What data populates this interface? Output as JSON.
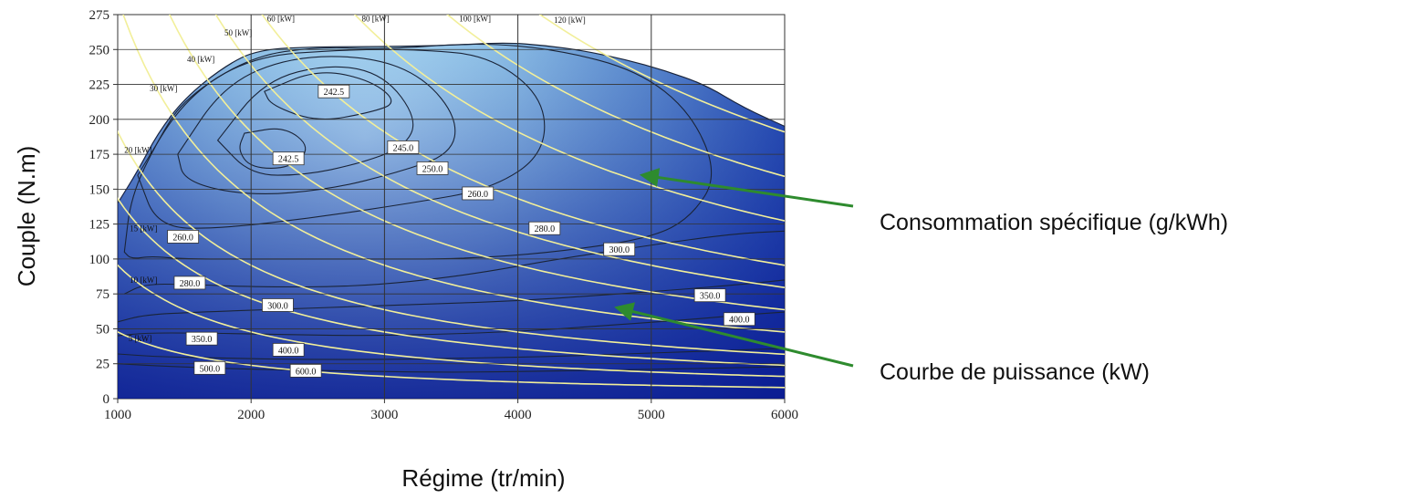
{
  "chart_data": {
    "type": "contour",
    "xlabel": "Régime (tr/min)",
    "ylabel": "Couple (N.m)",
    "xlim": [
      1000,
      6000
    ],
    "ylim": [
      0,
      275
    ],
    "x_ticks": [
      1000,
      2000,
      3000,
      4000,
      5000,
      6000
    ],
    "y_ticks": [
      0,
      25,
      50,
      75,
      100,
      125,
      150,
      175,
      200,
      225,
      250,
      275
    ],
    "grid": true,
    "max_torque_curve": {
      "x": [
        1000,
        1150,
        1300,
        1500,
        1800,
        2050,
        2500,
        3000,
        3500,
        3900,
        4200,
        4500,
        4800,
        5100,
        5400,
        5700,
        6000
      ],
      "y": [
        140,
        163,
        190,
        215,
        238,
        250,
        252,
        252,
        253,
        255,
        253,
        249,
        243,
        235,
        225,
        208,
        195
      ]
    },
    "power_curves": [
      {
        "label": "5 [kW]",
        "kw": 5
      },
      {
        "label": "10 [kW]",
        "kw": 10
      },
      {
        "label": "15 [kW]",
        "kw": 15
      },
      {
        "label": "20 [kW]",
        "kw": 20
      },
      {
        "label": "30 [kW]",
        "kw": 30
      },
      {
        "label": "40 [kW]",
        "kw": 40
      },
      {
        "label": "50 [kW]",
        "kw": 50
      },
      {
        "label": "60 [kW]",
        "kw": 60
      },
      {
        "label": "80 [kW]",
        "kw": 80
      },
      {
        "label": "100 [kW]",
        "kw": 100
      },
      {
        "label": "120 [kW]",
        "kw": 120
      }
    ],
    "power_labels": [
      {
        "text": "5 [kW]",
        "x": 1080,
        "y": 41
      },
      {
        "text": "10 [kW]",
        "x": 1090,
        "y": 83
      },
      {
        "text": "15 [kW]",
        "x": 1090,
        "y": 120
      },
      {
        "text": "20 [kW]",
        "x": 1050,
        "y": 176
      },
      {
        "text": "30 [kW]",
        "x": 1240,
        "y": 220
      },
      {
        "text": "40 [kW]",
        "x": 1520,
        "y": 241
      },
      {
        "text": "50 [kW]",
        "x": 1800,
        "y": 260
      },
      {
        "text": "60 [kW]",
        "x": 2120,
        "y": 270
      },
      {
        "text": "80 [kW]",
        "x": 2830,
        "y": 270
      },
      {
        "text": "100 [kW]",
        "x": 3560,
        "y": 270
      },
      {
        "text": "120 [kW]",
        "x": 4270,
        "y": 269
      }
    ],
    "bsfc_contours": [
      {
        "label": "242.5",
        "x": [
          2100,
          2500,
          2900,
          3100,
          2900,
          2500,
          2150,
          2100
        ],
        "y": [
          220,
          236,
          228,
          212,
          205,
          198,
          210,
          220
        ]
      },
      {
        "label": "242.5",
        "x": [
          1950,
          2250,
          2450,
          2300,
          2000,
          1900,
          1950
        ],
        "y": [
          190,
          195,
          180,
          165,
          165,
          178,
          190
        ]
      },
      {
        "label": "245.0",
        "x": [
          1750,
          2100,
          2600,
          3000,
          3250,
          3150,
          2800,
          2400,
          2000,
          1750
        ],
        "y": [
          185,
          228,
          240,
          232,
          200,
          180,
          168,
          160,
          160,
          185
        ]
      },
      {
        "label": "250.0",
        "x": [
          1450,
          1800,
          2300,
          2900,
          3300,
          3550,
          3500,
          3100,
          2600,
          2000,
          1500,
          1450
        ],
        "y": [
          175,
          225,
          245,
          245,
          230,
          200,
          175,
          162,
          150,
          145,
          155,
          175
        ]
      },
      {
        "label": "260.0",
        "x": [
          1150,
          1500,
          2000,
          2700,
          3300,
          3800,
          4200,
          4200,
          3800,
          3200,
          2500,
          1800,
          1300,
          1150
        ],
        "y": [
          160,
          215,
          245,
          250,
          250,
          245,
          215,
          175,
          150,
          140,
          130,
          122,
          122,
          160
        ]
      },
      {
        "label": "280.0",
        "x": [
          1050,
          1100,
          1300,
          1500,
          2000,
          2500,
          3000,
          3700,
          4300,
          4900,
          5300,
          5500,
          5300,
          5000,
          4300,
          3600,
          2800,
          2000,
          1500,
          1250,
          1100,
          1050
        ],
        "y": [
          105,
          145,
          185,
          215,
          245,
          252,
          250,
          255,
          250,
          235,
          205,
          160,
          130,
          115,
          105,
          100,
          100,
          100,
          100,
          102,
          100,
          105
        ]
      },
      {
        "label": "300.0",
        "x": [
          1050,
          1200,
          1500,
          2000,
          2800,
          3600,
          4300,
          5000,
          5600,
          6000
        ],
        "y": [
          75,
          82,
          82,
          80,
          80,
          88,
          100,
          110,
          118,
          120
        ]
      },
      {
        "label": "350.0",
        "x": [
          1000,
          1200,
          1600,
          2200,
          2800,
          3400,
          4000,
          4600,
          5200,
          5700,
          6000
        ],
        "y": [
          55,
          60,
          62,
          64,
          66,
          68,
          70,
          74,
          78,
          82,
          85
        ]
      },
      {
        "label": "400.0",
        "x": [
          1000,
          1200,
          1600,
          2200,
          2800,
          3400,
          4000,
          4600,
          5200,
          5700,
          6000
        ],
        "y": [
          45,
          47,
          47,
          46,
          45,
          46,
          48,
          52,
          56,
          60,
          62
        ]
      },
      {
        "label": "500.0",
        "x": [
          1000,
          1300,
          1800,
          2400,
          3000,
          3600,
          4200,
          4800,
          5400,
          6000
        ],
        "y": [
          32,
          30,
          29,
          28,
          28,
          29,
          30,
          32,
          34,
          36
        ]
      },
      {
        "label": "600.0",
        "x": [
          1000,
          1400,
          2000,
          2600,
          3200,
          3800,
          4400,
          5000,
          5600,
          6000
        ],
        "y": [
          25,
          23,
          21,
          20,
          19,
          19,
          20,
          21,
          22,
          23
        ]
      }
    ],
    "bsfc_labels": [
      {
        "text": "242.5",
        "x": 2620,
        "y": 220
      },
      {
        "text": "242.5",
        "x": 2280,
        "y": 172
      },
      {
        "text": "245.0",
        "x": 3140,
        "y": 180
      },
      {
        "text": "250.0",
        "x": 3360,
        "y": 165
      },
      {
        "text": "260.0",
        "x": 3700,
        "y": 147
      },
      {
        "text": "280.0",
        "x": 4200,
        "y": 122
      },
      {
        "text": "300.0",
        "x": 4760,
        "y": 107
      },
      {
        "text": "260.0",
        "x": 1490,
        "y": 116
      },
      {
        "text": "280.0",
        "x": 1540,
        "y": 83
      },
      {
        "text": "300.0",
        "x": 2200,
        "y": 67
      },
      {
        "text": "350.0",
        "x": 5440,
        "y": 74
      },
      {
        "text": "400.0",
        "x": 5660,
        "y": 57
      },
      {
        "text": "350.0",
        "x": 1630,
        "y": 43
      },
      {
        "text": "400.0",
        "x": 2280,
        "y": 35
      },
      {
        "text": "500.0",
        "x": 1690,
        "y": 22
      },
      {
        "text": "600.0",
        "x": 2410,
        "y": 20
      }
    ],
    "fill_gradient": [
      "#b9e4f8",
      "#8ec0e6",
      "#5f8fd0",
      "#2f57b8",
      "#0d239c"
    ]
  },
  "annotations": [
    {
      "text": "Consommation spécifique (g/kWh)",
      "arrow_to_x": 4940,
      "arrow_to_y": 160
    },
    {
      "text": "Courbe de puissance (kW)",
      "arrow_to_x": 4750,
      "arrow_to_y": 65
    }
  ],
  "colors": {
    "power_curve": "#f2ef9a",
    "contour_line": "#1a2438",
    "grid": "#333333",
    "arrow": "#2e8b2e"
  }
}
